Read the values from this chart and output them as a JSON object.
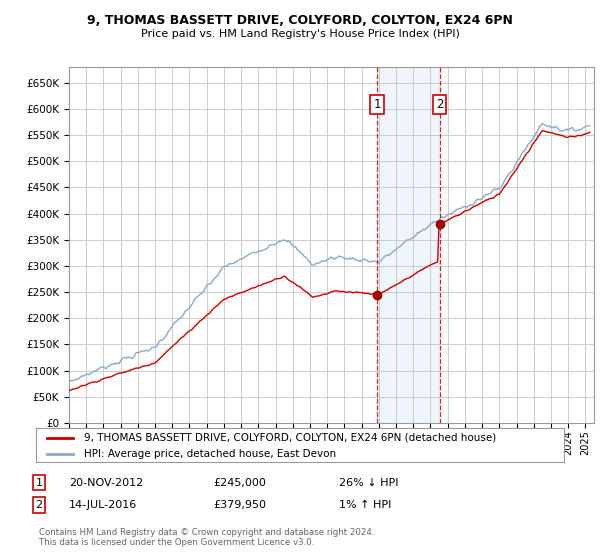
{
  "title1": "9, THOMAS BASSETT DRIVE, COLYFORD, COLYTON, EX24 6PN",
  "title2": "Price paid vs. HM Land Registry's House Price Index (HPI)",
  "ylim": [
    0,
    680000
  ],
  "yticks": [
    0,
    50000,
    100000,
    150000,
    200000,
    250000,
    300000,
    350000,
    400000,
    450000,
    500000,
    550000,
    600000,
    650000
  ],
  "xlim_start": 1995.0,
  "xlim_end": 2025.5,
  "sale1_year": 2012.89,
  "sale1_price": 245000,
  "sale2_year": 2016.54,
  "sale2_price": 379950,
  "legend1": "9, THOMAS BASSETT DRIVE, COLYFORD, COLYTON, EX24 6PN (detached house)",
  "legend2": "HPI: Average price, detached house, East Devon",
  "note1_num": "1",
  "note1_date": "20-NOV-2012",
  "note1_price": "£245,000",
  "note1_hpi": "26% ↓ HPI",
  "note2_num": "2",
  "note2_date": "14-JUL-2016",
  "note2_price": "£379,950",
  "note2_hpi": "1% ↑ HPI",
  "footer": "Contains HM Land Registry data © Crown copyright and database right 2024.\nThis data is licensed under the Open Government Licence v3.0.",
  "line_color_property": "#cc0000",
  "line_color_hpi": "#88aacc",
  "bg_color": "#ffffff",
  "grid_color": "#cccccc",
  "shade_color": "#ddeeff"
}
